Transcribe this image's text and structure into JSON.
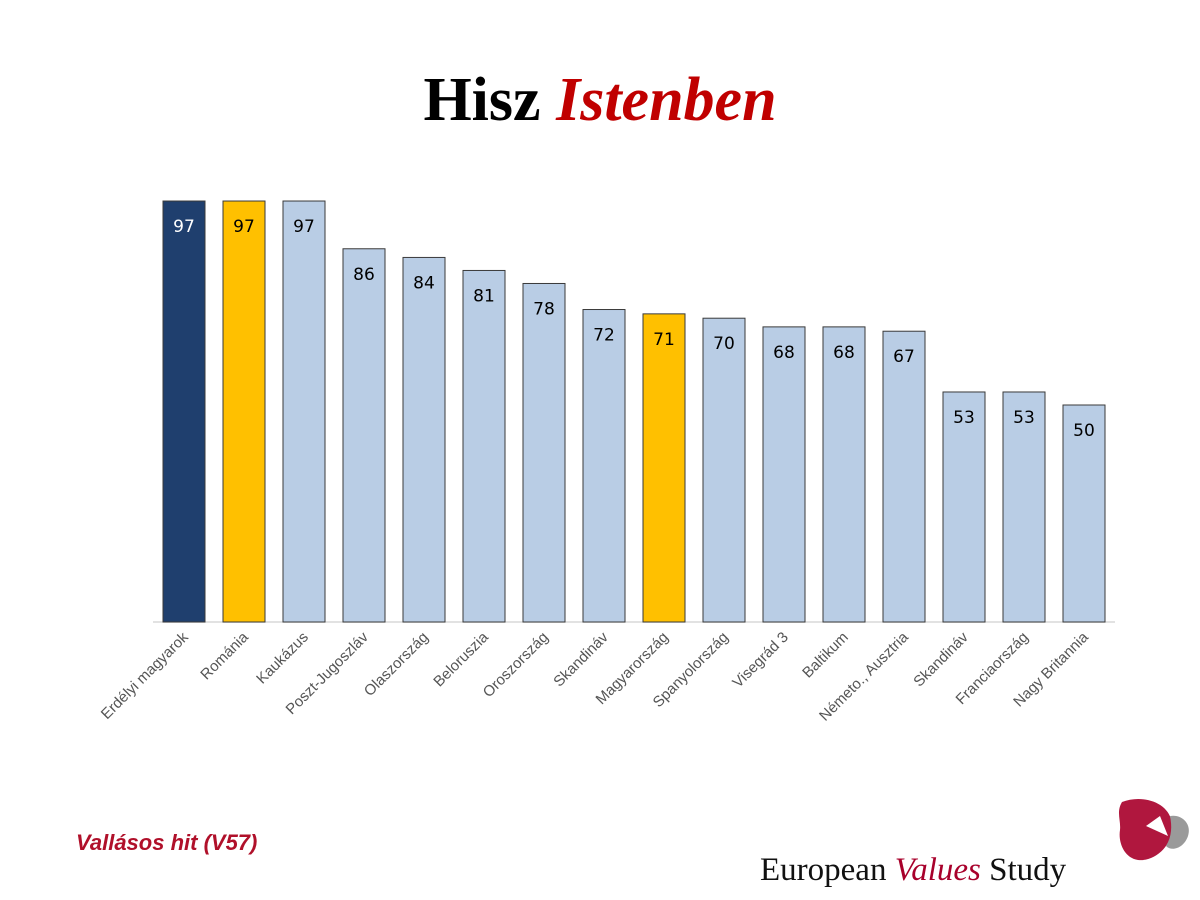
{
  "title": {
    "part1": "Hisz",
    "part2": "Istenben"
  },
  "footnote": "Vallásos hit (V57)",
  "brand": {
    "part1": "European",
    "part2": "Values",
    "part3": "Study"
  },
  "colors": {
    "highlight_dark": "#1f3f6e",
    "highlight_gold": "#ffc000",
    "default_bar": "#b9cde5",
    "accent_red": "#c00000"
  },
  "chart_data": {
    "type": "bar",
    "ylim": [
      0,
      100
    ],
    "grid": false,
    "categories": [
      "Erdélyi magyarok",
      "Románia",
      "Kaukázus",
      "Poszt-Jugoszláv",
      "Olaszország",
      "Beloruszia",
      "Oroszország",
      "Skandináv",
      "Magyarország",
      "Spanyolország",
      "Visegrád 3",
      "Baltikum",
      "Németo., Ausztria",
      "Skandináv",
      "Franciaország",
      "Nagy Britannia"
    ],
    "values": [
      97,
      97,
      97,
      86,
      84,
      81,
      78,
      72,
      71,
      70,
      68,
      68,
      67,
      53,
      53,
      50
    ],
    "bar_colors": [
      "#1f3f6e",
      "#ffc000",
      "#b9cde5",
      "#b9cde5",
      "#b9cde5",
      "#b9cde5",
      "#b9cde5",
      "#b9cde5",
      "#ffc000",
      "#b9cde5",
      "#b9cde5",
      "#b9cde5",
      "#b9cde5",
      "#b9cde5",
      "#b9cde5",
      "#b9cde5"
    ],
    "label_colors": [
      "#ffffff",
      "#000000",
      "#000000",
      "#000000",
      "#000000",
      "#000000",
      "#000000",
      "#000000",
      "#000000",
      "#000000",
      "#000000",
      "#000000",
      "#000000",
      "#000000",
      "#000000",
      "#000000"
    ]
  }
}
